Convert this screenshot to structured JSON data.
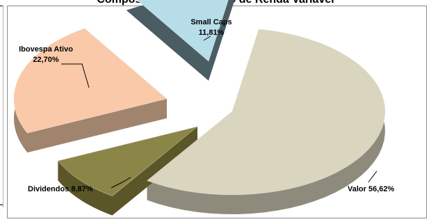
{
  "chart_data": {
    "type": "pie",
    "title": "Composição do segmento de Renda Variável",
    "three_d": true,
    "exploded": true,
    "slices": [
      {
        "name": "Valor",
        "value": 56.62,
        "label": "Valor 56,62%",
        "color": "#d9d5bf"
      },
      {
        "name": "Dividendos",
        "value": 8.87,
        "label": "Dividendos 8,87%",
        "color": "#8b8547"
      },
      {
        "name": "Ibovespa Ativo",
        "value": 22.7,
        "label_name": "Ibovespa Ativo",
        "label_value": "22,70%",
        "color": "#f9c9a9"
      },
      {
        "name": "Small Caps",
        "value": 11.81,
        "label_name": "Small Caps",
        "label_value": "11,81%",
        "color": "#b7dde8"
      }
    ]
  },
  "colors": {
    "valor_side": "#8e8b7c",
    "dividendos_side": "#5b5628",
    "ibovespa_side": "#a1846e",
    "smallcaps_side": "#4a5d63"
  }
}
